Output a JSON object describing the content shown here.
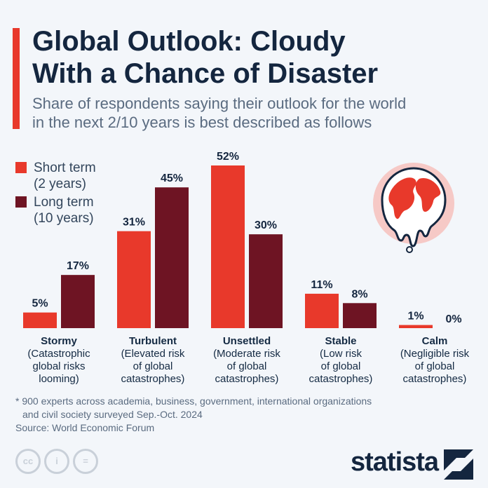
{
  "title": "Global Outlook: Cloudy With a Chance of Disaster",
  "title_lines": [
    "Global Outlook: Cloudy",
    "With a Chance of Disaster"
  ],
  "subtitle_lines": [
    "Share of respondents saying their outlook for the world",
    "in the next 2/10 years is best described as follows"
  ],
  "colors": {
    "short": "#e8392b",
    "long": "#6e1423",
    "accent": "#e8392b",
    "text": "#14263f"
  },
  "chart_data": {
    "type": "bar",
    "categories": [
      "Stormy",
      "Turbulent",
      "Unsettled",
      "Stable",
      "Calm"
    ],
    "category_descriptions": [
      [
        "(Catastrophic",
        "global risks",
        "looming)"
      ],
      [
        "(Elevated risk",
        "of global",
        "catastrophes)"
      ],
      [
        "(Moderate risk",
        "of global",
        "catastrophes)"
      ],
      [
        "(Low risk",
        "of global",
        "catastrophes)"
      ],
      [
        "(Negligible risk",
        "of global",
        "catastrophes)"
      ]
    ],
    "series": [
      {
        "name": "Short term (2 years)",
        "legend_lines": [
          "Short term",
          "(2 years)"
        ],
        "values": [
          5,
          31,
          52,
          11,
          1
        ],
        "labels": [
          "5%",
          "31%",
          "52%",
          "11%",
          "1%"
        ]
      },
      {
        "name": "Long term (10 years)",
        "legend_lines": [
          "Long term",
          "(10 years)"
        ],
        "values": [
          17,
          45,
          30,
          8,
          0
        ],
        "labels": [
          "17%",
          "45%",
          "30%",
          "8%",
          "0%"
        ]
      }
    ],
    "unit": "%",
    "legend_placement": "top-left",
    "grid": false
  },
  "footnote_lines": [
    "* 900 experts across academia, business, government, international organizations",
    "and civil society surveyed Sep.-Oct. 2024"
  ],
  "source": "Source: World Economic Forum",
  "license_icons": [
    "cc",
    "by",
    "nd"
  ],
  "license_labels": [
    "cc",
    "i",
    "="
  ],
  "brand": "statista"
}
